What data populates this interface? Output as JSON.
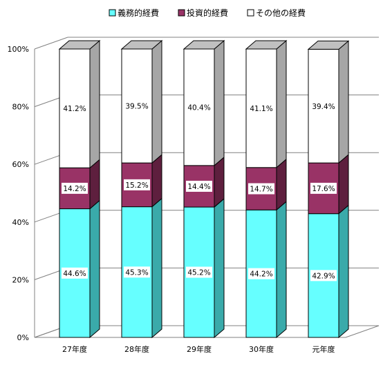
{
  "chart_data": {
    "type": "bar",
    "stacked": true,
    "style": "3d",
    "categories": [
      "27年度",
      "28年度",
      "29年度",
      "30年度",
      "元年度"
    ],
    "series": [
      {
        "name": "義務的経費",
        "values": [
          44.6,
          45.3,
          45.2,
          44.2,
          42.9
        ]
      },
      {
        "name": "投資的経費",
        "values": [
          14.2,
          15.2,
          14.4,
          14.7,
          17.6
        ]
      },
      {
        "name": "その他の経費",
        "values": [
          41.2,
          39.5,
          40.4,
          41.1,
          39.4
        ]
      }
    ],
    "data_labels": [
      [
        "44.6%",
        "45.3%",
        "45.2%",
        "44.2%",
        "42.9%"
      ],
      [
        "14.2%",
        "15.2%",
        "14.4%",
        "14.7%",
        "17.6%"
      ],
      [
        "41.2%",
        "39.5%",
        "40.4%",
        "41.1%",
        "39.4%"
      ]
    ],
    "y_ticks": [
      "0%",
      "20%",
      "40%",
      "60%",
      "80%",
      "100%"
    ],
    "ylim": [
      0,
      100
    ],
    "grid": true,
    "legend_position": "top",
    "colors": {
      "series_front": [
        "#66FFFF",
        "#993366",
        "#FFFFFF"
      ],
      "series_side": [
        "#3AAAAA",
        "#5E1F3E",
        "#A6A6A6"
      ],
      "series_top": [
        "#55DDDD",
        "#7A2950",
        "#C0C0C0"
      ],
      "wall": "#FFFFFF",
      "gridline": "#808080",
      "outline": "#000000"
    }
  }
}
